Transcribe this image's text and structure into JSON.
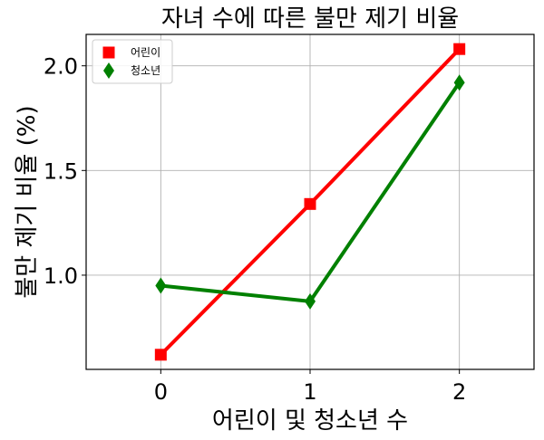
{
  "chart_data": {
    "type": "line",
    "title": "자녀 수에 따른 불만 제기 비율",
    "xlabel": "어린이 및 청소년 수",
    "ylabel": "불만 제기 비율 (%)",
    "x": [
      0,
      1,
      2
    ],
    "xticks": [
      "0",
      "1",
      "2"
    ],
    "yticks": [
      "1.0",
      "1.5",
      "2.0"
    ],
    "xlim": [
      -0.5,
      2.5
    ],
    "ylim": [
      0.55,
      2.15
    ],
    "grid": true,
    "legend_position": "top-left",
    "series": [
      {
        "name": "어린이",
        "values": [
          0.62,
          1.34,
          2.08
        ],
        "color": "#ff0000",
        "marker": "square"
      },
      {
        "name": "청소년",
        "values": [
          0.95,
          0.875,
          1.92
        ],
        "color": "#008000",
        "marker": "diamond"
      }
    ]
  }
}
